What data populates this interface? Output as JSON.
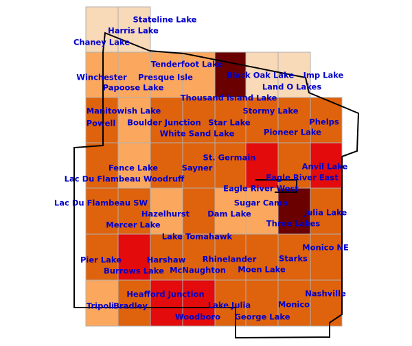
{
  "labels": [
    "Stateline Lake",
    "Harris Lake",
    "Chaney Lake",
    "Tenderfoot Lake",
    "Black Oak Lake",
    "Imp Lake",
    "Winchester",
    "Presque Isle",
    "Papoose Lake",
    "Land O Lakes",
    "Thousand Island Lake",
    "Manitowish Lake",
    "Stormy Lake",
    "Powell",
    "Boulder Junction",
    "Star Lake",
    "Phelps",
    "White Sand Lake",
    "Pioneer Lake",
    "St. Germain",
    "Fence Lake",
    "Sayner",
    "Anvil Lake",
    "Eagle River East",
    "Lac Du Flambeau Woodruff",
    "Eagle River West",
    "Sugar Camp",
    "Lac Du Flambeau SW",
    "Julia Lake",
    "Hazelhurst",
    "Dam Lake",
    "Mercer Lake",
    "Three Lakes",
    "Lake Tomahawk",
    "Monico NE",
    "Pier Lake",
    "Harshaw",
    "Rhinelander",
    "Starks",
    "Burrows Lake",
    "McNaughton",
    "Moen Lake",
    "Nashville",
    "Heafford Junction",
    "Tripoli",
    "Bradley",
    "Lake Julia",
    "Monico",
    "Woodboro",
    "George Lake"
  ]
}
